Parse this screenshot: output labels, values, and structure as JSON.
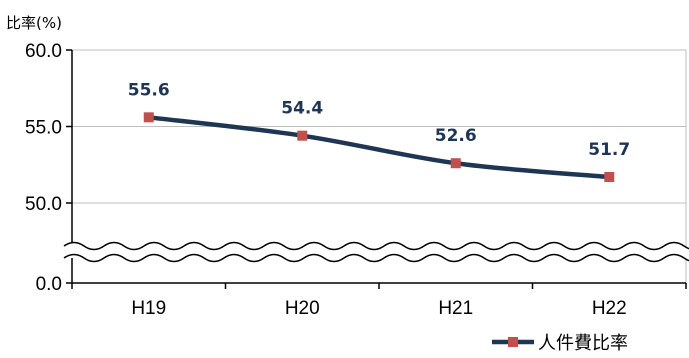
{
  "chart_data": {
    "type": "line",
    "unit_label": "比率(%)",
    "categories": [
      "H19",
      "H20",
      "H21",
      "H22"
    ],
    "series": [
      {
        "name": "人件費比率",
        "values": [
          55.6,
          54.4,
          52.6,
          51.7
        ],
        "data_labels": [
          "55.6",
          "54.4",
          "52.6",
          "51.7"
        ]
      }
    ],
    "y_ticks": [
      "60.0",
      "55.0",
      "50.0",
      "0.0"
    ],
    "y_tick_values": [
      60.0,
      55.0,
      50.0,
      0.0
    ],
    "y_axis_break": true,
    "ylim_displayed": [
      50.0,
      60.0
    ],
    "grid": true,
    "legend_position": "bottom-right",
    "colors": {
      "line": "#1f3554",
      "marker": "#c0504d",
      "grid": "#bfbfbf",
      "axis": "#000000"
    }
  }
}
